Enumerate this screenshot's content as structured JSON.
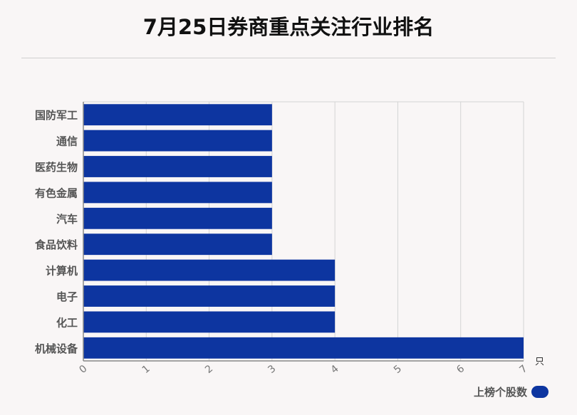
{
  "title": "7月25日券商重点关注行业排名",
  "chart_data": {
    "type": "bar",
    "orientation": "horizontal",
    "categories": [
      "国防军工",
      "通信",
      "医药生物",
      "有色金属",
      "汽车",
      "食品饮料",
      "计算机",
      "电子",
      "化工",
      "机械设备"
    ],
    "values": [
      3,
      3,
      3,
      3,
      3,
      3,
      4,
      4,
      4,
      7
    ],
    "series": [
      {
        "name": "上榜个股数",
        "values": [
          3,
          3,
          3,
          3,
          3,
          3,
          4,
          4,
          4,
          7
        ]
      }
    ],
    "xlim": [
      0,
      7
    ],
    "xticks": [
      "0",
      "1",
      "2",
      "3",
      "4",
      "5",
      "6",
      "7"
    ],
    "xunit": "只",
    "grid": true,
    "legend_position": "bottom-right",
    "bar_color": "#0d35a0"
  },
  "legend": {
    "label": "上榜个股数"
  }
}
